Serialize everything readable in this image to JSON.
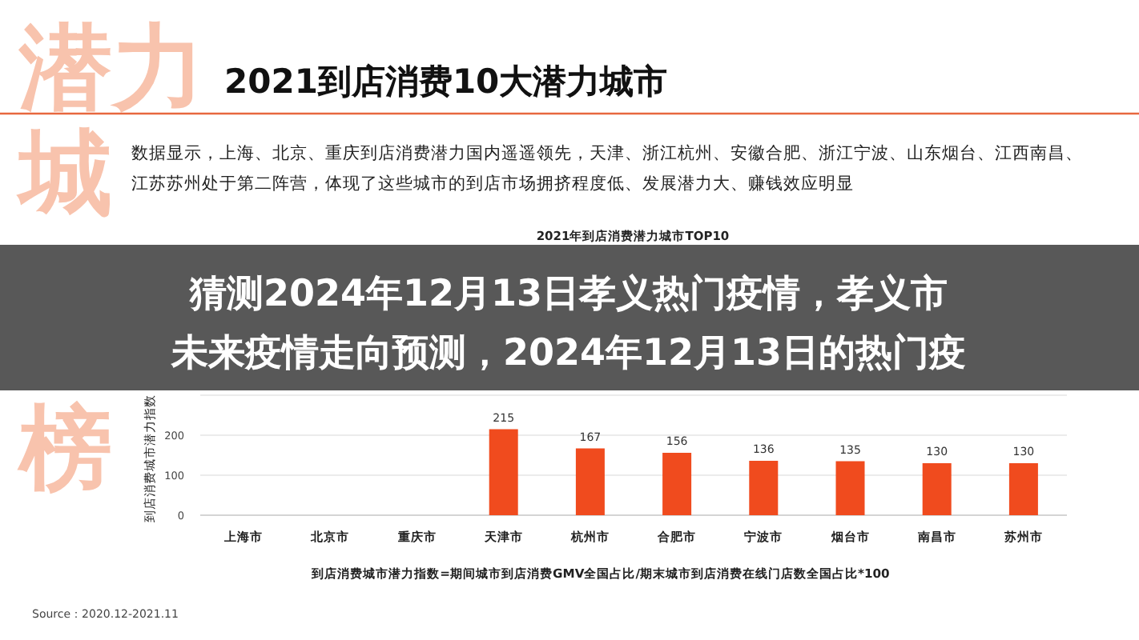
{
  "chart_data": {
    "type": "bar",
    "title": "2021到店消费10大潜力城市",
    "subtitle": "2021年到店消费潜力城市TOP10",
    "ylabel": "到店消费城市潜力指数",
    "xlabel": "到店消费城市潜力指数=期间城市到店消费GMV全国占比/期末城市到店消费在线门店数全国占比*100",
    "categories": [
      "上海市",
      "北京市",
      "重庆市",
      "天津市",
      "杭州市",
      "合肥市",
      "宁波市",
      "烟台市",
      "南昌市",
      "苏州市"
    ],
    "values": [
      null,
      null,
      null,
      215,
      167,
      156,
      136,
      135,
      130,
      130
    ],
    "color": "#f04b1e",
    "data_labels": true,
    "ylim": [
      0,
      300
    ],
    "yticks": [
      0,
      100,
      200,
      {
        "value": 300,
        "label": null
      }
    ],
    "grid": "y",
    "annotations": [
      "潜力",
      "城",
      "榜",
      "数据显示，上海、北京、重庆到店消费潜力国内遥遥领先，天津、浙江杭州、安徽合肥、浙江宁波、山东烟台、江西南昌、",
      "江苏苏州处于第二阵营，体现了这些城市的到店市场拥挤程度低、发展潜力大、赚钱效应明显",
      "猜测2024年12月13日孝义热门疫情，孝义市",
      "未来疫情走向预测，2024年12月13日的热门疫",
      "Source：2020.12-2021.11"
    ]
  }
}
